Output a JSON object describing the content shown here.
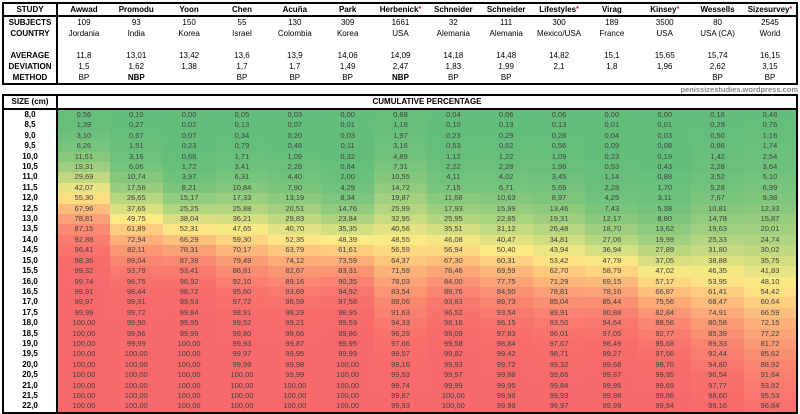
{
  "page": {
    "watermark": "penissizestudies.wordpress.com"
  },
  "header_table": {
    "row_labels": {
      "study": "STUDY",
      "subjects": "SUBJECTS",
      "country": "COUNTRY",
      "average": "AVERAGE",
      "deviation": "DEVIATION",
      "method": "METHOD"
    },
    "studies": [
      {
        "name": "Awwad",
        "asterisk": false,
        "subjects": "109",
        "country": "Jordania",
        "average": "11,8",
        "deviation": "1,5",
        "method": "BP",
        "method_highlight": false
      },
      {
        "name": "Promodu",
        "asterisk": false,
        "subjects": "93",
        "country": "India",
        "average": "13,01",
        "deviation": "1,62",
        "method": "NBP",
        "method_highlight": true
      },
      {
        "name": "Yoon",
        "asterisk": false,
        "subjects": "150",
        "country": "Korea",
        "average": "13,42",
        "deviation": "1,38",
        "method": "",
        "method_highlight": false
      },
      {
        "name": "Chen",
        "asterisk": false,
        "subjects": "55",
        "country": "Israel",
        "average": "13,6",
        "deviation": "1,7",
        "method": "BP",
        "method_highlight": false
      },
      {
        "name": "Acuña",
        "asterisk": false,
        "subjects": "130",
        "country": "Colombia",
        "average": "13,9",
        "deviation": "1,7",
        "method": "BP",
        "method_highlight": false
      },
      {
        "name": "Park",
        "asterisk": false,
        "subjects": "309",
        "country": "Korea",
        "average": "14,06",
        "deviation": "1,49",
        "method": "BP",
        "method_highlight": false
      },
      {
        "name": "Herbenick",
        "asterisk": true,
        "subjects": "1661",
        "country": "USA",
        "average": "14,09",
        "deviation": "2,47",
        "method": "NBP",
        "method_highlight": true
      },
      {
        "name": "Schneider",
        "asterisk": false,
        "subjects": "32",
        "country": "Alemania",
        "average": "14,18",
        "deviation": "1,83",
        "method": "BP",
        "method_highlight": false
      },
      {
        "name": "Schneider",
        "asterisk": false,
        "subjects": "111",
        "country": "Alemania",
        "average": "14,48",
        "deviation": "1,99",
        "method": "BP",
        "method_highlight": false
      },
      {
        "name": "Lifestyles",
        "asterisk": true,
        "subjects": "300",
        "country": "Mexico/USA",
        "average": "14,82",
        "deviation": "2,1",
        "method": "",
        "method_highlight": false
      },
      {
        "name": "Virag",
        "asterisk": false,
        "subjects": "189",
        "country": "France",
        "average": "15,1",
        "deviation": "1,8",
        "method": "",
        "method_highlight": false
      },
      {
        "name": "Kinsey",
        "asterisk": true,
        "subjects": "3500",
        "country": "USA",
        "average": "15,65",
        "deviation": "1,96",
        "method": "",
        "method_highlight": false
      },
      {
        "name": "Wessells",
        "asterisk": false,
        "subjects": "80",
        "country": "USA (CA)",
        "average": "15,74",
        "deviation": "2,62",
        "method": "BP",
        "method_highlight": false
      },
      {
        "name": "Sizesurvey",
        "asterisk": true,
        "subjects": "2545",
        "country": "World",
        "average": "16,15",
        "deviation": "3,15",
        "method": "BP",
        "method_highlight": false
      }
    ],
    "accent_red": "#ff0000"
  },
  "chart_data": {
    "type": "heatmap",
    "title": "CUMULATIVE PERCENTAGE",
    "row_label": "SIZE (cm)",
    "x_categories": [
      "Awwad",
      "Promodu",
      "Yoon",
      "Chen",
      "Acuña",
      "Park",
      "Herbenick",
      "Schneider",
      "Schneider",
      "Lifestyles",
      "Virag",
      "Kinsey",
      "Wessells",
      "Sizesurvey"
    ],
    "y_categories": [
      "8,0",
      "8,5",
      "9,0",
      "9,5",
      "10,0",
      "10,5",
      "11,0",
      "11,5",
      "12,0",
      "12,5",
      "13,0",
      "13,5",
      "14,0",
      "14,5",
      "15,0",
      "15,5",
      "16,0",
      "16,5",
      "17,0",
      "17,5",
      "18,0",
      "18,5",
      "19,0",
      "19,5",
      "20,0",
      "20,5",
      "21,0",
      "21,5",
      "22,0"
    ],
    "values": [
      [
        0.56,
        0.1,
        0.0,
        0.05,
        0.03,
        0.0,
        0.68,
        0.04,
        0.06,
        0.06,
        0.0,
        0.0,
        0.16,
        0.48
      ],
      [
        1.39,
        0.27,
        0.02,
        0.13,
        0.07,
        0.01,
        1.18,
        0.1,
        0.13,
        0.13,
        0.01,
        0.01,
        0.29,
        0.76
      ],
      [
        3.1,
        0.67,
        0.07,
        0.34,
        0.2,
        0.03,
        1.97,
        0.23,
        0.29,
        0.28,
        0.04,
        0.03,
        0.5,
        1.16
      ],
      [
        6.26,
        1.51,
        0.23,
        0.79,
        0.48,
        0.11,
        3.16,
        0.53,
        0.62,
        0.56,
        0.09,
        0.08,
        0.86,
        1.74
      ],
      [
        11.51,
        3.16,
        0.66,
        1.71,
        1.09,
        0.32,
        4.89,
        1.12,
        1.22,
        1.09,
        0.23,
        0.19,
        1.42,
        2.54
      ],
      [
        19.31,
        6.06,
        1.72,
        3.41,
        2.28,
        0.84,
        7.31,
        2.22,
        2.28,
        1.98,
        0.53,
        0.43,
        2.28,
        3.64
      ],
      [
        29.69,
        10.74,
        3.97,
        6.31,
        4.4,
        2.0,
        10.55,
        4.11,
        4.02,
        3.45,
        1.14,
        0.88,
        3.52,
        5.1
      ],
      [
        42.07,
        17.56,
        8.21,
        10.84,
        7.9,
        4.29,
        14.72,
        7.15,
        6.71,
        5.69,
        2.28,
        1.7,
        5.28,
        6.99
      ],
      [
        55.3,
        26.65,
        15.17,
        17.33,
        13.19,
        8.34,
        19.87,
        11.68,
        10.63,
        8.97,
        4.25,
        3.11,
        7.67,
        9.38
      ],
      [
        67.96,
        37.65,
        25.25,
        25.88,
        20.51,
        14.76,
        25.99,
        17.93,
        15.99,
        13.46,
        7.43,
        5.38,
        10.81,
        12.33
      ],
      [
        78.81,
        49.75,
        38.04,
        36.21,
        29.83,
        23.84,
        32.95,
        25.95,
        22.85,
        19.31,
        12.17,
        8.8,
        14.78,
        15.87
      ],
      [
        87.15,
        61.89,
        52.31,
        47.65,
        40.7,
        35.35,
        40.56,
        35.51,
        31.12,
        26.48,
        18.7,
        13.62,
        19.63,
        20.01
      ],
      [
        92.88,
        72.94,
        66.29,
        59.3,
        52.35,
        48.39,
        48.55,
        46.08,
        40.47,
        34.81,
        27.06,
        19.99,
        25.33,
        24.74
      ],
      [
        96.41,
        82.11,
        78.31,
        70.17,
        63.79,
        61.61,
        56.59,
        56.94,
        50.4,
        43.94,
        36.94,
        27.89,
        31.8,
        30.02
      ],
      [
        98.36,
        89.04,
        87.39,
        79.49,
        74.12,
        73.59,
        64.37,
        67.3,
        60.31,
        53.42,
        47.78,
        37.05,
        38.88,
        35.75
      ],
      [
        99.32,
        93.79,
        93.41,
        86.81,
        82.67,
        83.31,
        71.59,
        76.46,
        69.59,
        62.7,
        58.79,
        47.02,
        46.35,
        41.83
      ],
      [
        99.74,
        96.75,
        96.92,
        92.1,
        89.16,
        90.35,
        78.03,
        84.0,
        77.75,
        71.29,
        69.15,
        57.17,
        53.95,
        48.1
      ],
      [
        99.91,
        98.44,
        98.72,
        95.6,
        93.69,
        94.92,
        83.54,
        89.76,
        84.5,
        78.81,
        78.16,
        66.87,
        61.41,
        54.42
      ],
      [
        99.97,
        99.31,
        99.53,
        97.72,
        96.59,
        97.58,
        88.06,
        93.83,
        89.73,
        85.04,
        85.44,
        75.56,
        68.47,
        60.64
      ],
      [
        99.99,
        99.72,
        99.84,
        98.91,
        98.29,
        98.95,
        91.63,
        96.52,
        93.54,
        89.91,
        90.88,
        82.84,
        74.91,
        66.59
      ],
      [
        100.0,
        99.9,
        99.95,
        99.52,
        99.21,
        99.59,
        94.33,
        98.16,
        96.15,
        93.5,
        94.64,
        88.56,
        80.58,
        72.15
      ],
      [
        100.0,
        99.96,
        99.99,
        99.8,
        99.66,
        99.86,
        96.29,
        99.09,
        97.83,
        96.01,
        97.05,
        92.77,
        85.39,
        77.22
      ],
      [
        100.0,
        99.99,
        100.0,
        99.93,
        99.87,
        99.95,
        97.66,
        99.58,
        98.84,
        97.67,
        98.49,
        95.68,
        89.33,
        81.72
      ],
      [
        100.0,
        100.0,
        100.0,
        99.97,
        99.95,
        99.99,
        98.57,
        99.82,
        99.42,
        98.71,
        99.27,
        97.56,
        92.44,
        85.62
      ],
      [
        100.0,
        100.0,
        100.0,
        99.99,
        99.98,
        100.0,
        99.16,
        99.93,
        99.72,
        99.32,
        99.68,
        98.7,
        94.8,
        88.92
      ],
      [
        100.0,
        100.0,
        100.0,
        100.0,
        99.99,
        100.0,
        99.53,
        99.97,
        99.88,
        99.66,
        99.87,
        99.35,
        96.54,
        91.64
      ],
      [
        100.0,
        100.0,
        100.0,
        100.0,
        100.0,
        100.0,
        99.74,
        99.99,
        99.95,
        99.84,
        99.95,
        99.69,
        97.77,
        93.82
      ],
      [
        100.0,
        100.0,
        100.0,
        100.0,
        100.0,
        100.0,
        99.87,
        100.0,
        99.98,
        99.93,
        99.98,
        99.86,
        98.6,
        95.53
      ],
      [
        100.0,
        100.0,
        100.0,
        100.0,
        100.0,
        100.0,
        99.93,
        100.0,
        99.99,
        99.97,
        99.99,
        99.94,
        99.16,
        96.84
      ]
    ],
    "color_scale": {
      "min": 0,
      "mid": 50,
      "max": 100,
      "min_color": "#63BE7B",
      "mid_color": "#FFEB84",
      "max_color": "#F8696B"
    },
    "legend_position": "none",
    "grid": false
  }
}
